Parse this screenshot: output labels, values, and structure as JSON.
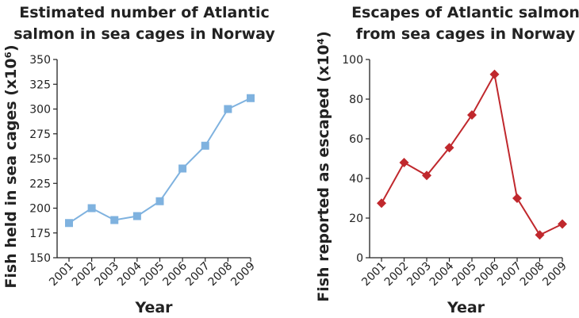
{
  "chart_data": [
    {
      "type": "line",
      "title": [
        "Estimated number of Atlantic",
        "salmon in sea cages in Norway"
      ],
      "xlabel": "Year",
      "ylabel": "Fish held in sea cages (x10⁶)",
      "ylim": [
        150,
        350
      ],
      "yticks": [
        150,
        175,
        200,
        225,
        250,
        275,
        300,
        325,
        350
      ],
      "x": [
        "2001",
        "2002",
        "2003",
        "2004",
        "2005",
        "2006",
        "2007",
        "2008",
        "2009"
      ],
      "series": [
        {
          "values": [
            185,
            200,
            188,
            192,
            207,
            240,
            263,
            300,
            311
          ],
          "color": "#7fb2df",
          "marker": "square"
        }
      ],
      "grid": false
    },
    {
      "type": "line",
      "title": [
        "Escapes of Atlantic salmon",
        "from sea cages in Norway"
      ],
      "xlabel": "Year",
      "ylabel": "Fish reported as escaped (x10⁴)",
      "ylim": [
        0,
        100
      ],
      "yticks": [
        0,
        20,
        40,
        60,
        80,
        100
      ],
      "x": [
        "2001",
        "2002",
        "2003",
        "2004",
        "2005",
        "2006",
        "2007",
        "2008",
        "2009"
      ],
      "series": [
        {
          "values": [
            27.5,
            48,
            41.5,
            55.5,
            72,
            92.5,
            30,
            11.5,
            17
          ],
          "color": "#c0282d",
          "marker": "diamond"
        }
      ],
      "grid": false
    }
  ]
}
